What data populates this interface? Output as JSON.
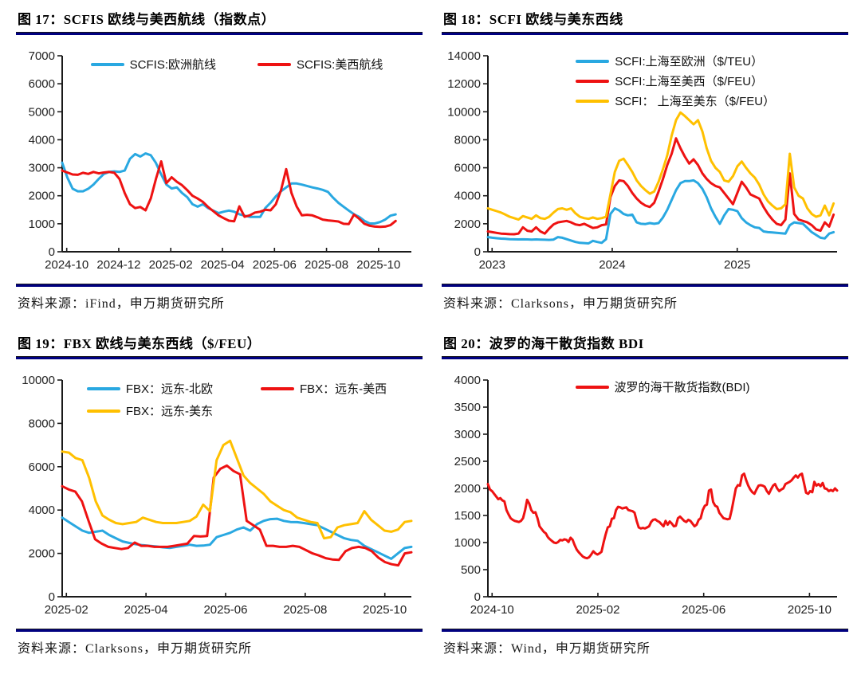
{
  "page": {
    "background": "#ffffff",
    "rule_color": "#000080"
  },
  "figures": [
    {
      "title": "图 17：SCFIS 欧线与美西航线（指数点）",
      "source": "资料来源：iFind，申万期货研究所"
    },
    {
      "title": "图 18：SCFI 欧线与美东西线",
      "source": "资料来源：Clarksons，申万期货研究所"
    },
    {
      "title": "图 19：FBX 欧线与美东西线（$/FEU）",
      "source": "资料来源：Clarksons，申万期货研究所"
    },
    {
      "title": "图 20：波罗的海干散货指数 BDI",
      "source": "资料来源：Wind，申万期货研究所"
    }
  ],
  "chart_data": [
    {
      "type": "line",
      "title": "图 17：SCFIS 欧线与美西航线（指数点）",
      "xlabel": "",
      "ylabel": "",
      "ylim": [
        0,
        7000
      ],
      "yticks": [
        0,
        1000,
        2000,
        3000,
        4000,
        5000,
        6000,
        7000
      ],
      "xticks": [
        {
          "label": "2024-10",
          "pos": 0.013
        },
        {
          "label": "2024-12",
          "pos": 0.162
        },
        {
          "label": "2025-02",
          "pos": 0.311
        },
        {
          "label": "2025-04",
          "pos": 0.459
        },
        {
          "label": "2025-06",
          "pos": 0.608
        },
        {
          "label": "2025-08",
          "pos": 0.757
        },
        {
          "label": "2025-10",
          "pos": 0.906
        }
      ],
      "x_end": 0.955,
      "grid": false,
      "legend_position": "top-center-row",
      "series": [
        {
          "name": "SCFIS:欧洲航线",
          "color": "#29A8E1",
          "values": [
            3180,
            2650,
            2250,
            2160,
            2160,
            2250,
            2400,
            2600,
            2780,
            2850,
            2870,
            2850,
            2900,
            3320,
            3490,
            3400,
            3510,
            3450,
            3170,
            2760,
            2400,
            2260,
            2300,
            2100,
            1950,
            1700,
            1610,
            1700,
            1560,
            1470,
            1380,
            1430,
            1470,
            1430,
            1340,
            1290,
            1245,
            1245,
            1245,
            1565,
            1750,
            1980,
            2160,
            2300,
            2440,
            2440,
            2400,
            2350,
            2300,
            2260,
            2210,
            2140,
            1930,
            1750,
            1610,
            1470,
            1340,
            1245,
            1105,
            1010,
            1010,
            1060,
            1150,
            1290,
            1335
          ]
        },
        {
          "name": "SCFIS:美西航线",
          "color": "#EE1212",
          "values": [
            2900,
            2830,
            2760,
            2750,
            2820,
            2780,
            2850,
            2800,
            2830,
            2850,
            2820,
            2600,
            2100,
            1700,
            1560,
            1600,
            1480,
            1900,
            2600,
            3230,
            2450,
            2660,
            2500,
            2380,
            2200,
            2000,
            1900,
            1780,
            1600,
            1450,
            1300,
            1200,
            1110,
            1090,
            1620,
            1250,
            1300,
            1400,
            1430,
            1500,
            1480,
            1700,
            2200,
            2950,
            2100,
            1620,
            1300,
            1320,
            1300,
            1230,
            1150,
            1120,
            1100,
            1080,
            1000,
            990,
            1330,
            1180,
            1000,
            930,
            900,
            890,
            900,
            950,
            1100
          ]
        }
      ]
    },
    {
      "type": "line",
      "title": "图 18：SCFI 欧线与美东西线",
      "xlabel": "",
      "ylabel": "",
      "ylim": [
        0,
        14000
      ],
      "yticks": [
        0,
        2000,
        4000,
        6000,
        8000,
        10000,
        12000,
        14000
      ],
      "xticks": [
        {
          "label": "2023",
          "pos": 0.012
        },
        {
          "label": "2024",
          "pos": 0.356
        },
        {
          "label": "2025",
          "pos": 0.714
        }
      ],
      "x_end": 0.99,
      "grid": false,
      "legend_position": "top-center-column",
      "series": [
        {
          "name": "SCFI:上海至欧洲（$/TEU）",
          "color": "#29A8E1",
          "values": [
            1050,
            1000,
            970,
            940,
            920,
            900,
            890,
            880,
            890,
            880,
            870,
            880,
            870,
            860,
            850,
            870,
            1050,
            1000,
            900,
            800,
            700,
            640,
            620,
            600,
            780,
            700,
            640,
            900,
            2700,
            3100,
            2950,
            2700,
            2600,
            2650,
            2100,
            2000,
            1980,
            2050,
            2000,
            2050,
            2450,
            3000,
            3700,
            4400,
            4900,
            5050,
            5050,
            5100,
            4900,
            4500,
            3900,
            3100,
            2500,
            2000,
            2600,
            3050,
            3000,
            2900,
            2400,
            2100,
            1900,
            1750,
            1700,
            1450,
            1400,
            1380,
            1350,
            1320,
            1300,
            1900,
            2100,
            2050,
            2000,
            1700,
            1400,
            1200,
            1000,
            950,
            1300,
            1400
          ]
        },
        {
          "name": "SCFI:上海至美西（$/FEU）",
          "color": "#EE1212",
          "values": [
            1450,
            1400,
            1350,
            1300,
            1280,
            1260,
            1250,
            1300,
            1750,
            1500,
            1450,
            1750,
            1450,
            1300,
            1650,
            1950,
            2100,
            2150,
            2200,
            2100,
            1950,
            1900,
            2000,
            1850,
            1700,
            1750,
            1900,
            1950,
            3900,
            4700,
            5100,
            5050,
            4700,
            4200,
            3800,
            3500,
            3300,
            3200,
            3500,
            4300,
            5200,
            6200,
            7000,
            8100,
            7400,
            6800,
            6300,
            6600,
            6200,
            5600,
            5200,
            4900,
            4700,
            4600,
            4200,
            3800,
            3400,
            4200,
            5000,
            4600,
            4100,
            3950,
            3800,
            3200,
            2700,
            2300,
            2000,
            1900,
            2300,
            5600,
            2700,
            2300,
            2200,
            2100,
            1900,
            1600,
            1500,
            2100,
            1800,
            2650
          ]
        },
        {
          "name": "SCFI： 上海至美东（$/FEU）",
          "color": "#FFC000",
          "values": [
            3100,
            3000,
            2900,
            2800,
            2650,
            2500,
            2400,
            2300,
            2550,
            2450,
            2350,
            2600,
            2400,
            2350,
            2500,
            2800,
            3050,
            3100,
            3000,
            3100,
            2750,
            2500,
            2400,
            2350,
            2450,
            2350,
            2400,
            2500,
            4100,
            5700,
            6500,
            6650,
            6200,
            5700,
            5100,
            4700,
            4400,
            4150,
            4300,
            5000,
            5900,
            6900,
            8300,
            9400,
            9950,
            9700,
            9400,
            9100,
            9400,
            8600,
            7400,
            6500,
            6000,
            5700,
            5100,
            5000,
            5400,
            6100,
            6450,
            6000,
            5600,
            5300,
            4800,
            4100,
            3600,
            3300,
            3050,
            3100,
            3400,
            7000,
            4600,
            4000,
            3800,
            3100,
            2700,
            2500,
            2600,
            3300,
            2600,
            3450
          ]
        }
      ]
    },
    {
      "type": "line",
      "title": "图 19：FBX 欧线与美东西线（$/FEU）",
      "xlabel": "",
      "ylabel": "",
      "ylim": [
        0,
        10000
      ],
      "yticks": [
        0,
        2000,
        4000,
        6000,
        8000,
        10000
      ],
      "xticks": [
        {
          "label": "2025-02",
          "pos": 0.012
        },
        {
          "label": "2025-04",
          "pos": 0.24
        },
        {
          "label": "2025-06",
          "pos": 0.468
        },
        {
          "label": "2025-08",
          "pos": 0.696
        },
        {
          "label": "2025-10",
          "pos": 0.924
        }
      ],
      "x_end": 1.0,
      "grid": false,
      "legend_position": "top-center-two-rows",
      "series": [
        {
          "name": "FBX：远东-北欧",
          "color": "#29A8E1",
          "values": [
            3650,
            3450,
            3250,
            3050,
            2950,
            3000,
            3050,
            2850,
            2700,
            2550,
            2480,
            2420,
            2380,
            2350,
            2320,
            2280,
            2250,
            2300,
            2350,
            2400,
            2350,
            2360,
            2400,
            2750,
            2850,
            2950,
            3100,
            3200,
            3050,
            3350,
            3500,
            3580,
            3600,
            3500,
            3450,
            3440,
            3400,
            3350,
            3300,
            3150,
            3000,
            2850,
            2700,
            2620,
            2580,
            2350,
            2200,
            2050,
            1900,
            1750,
            2000,
            2250,
            2300
          ]
        },
        {
          "name": "FBX：远东-美西",
          "color": "#EE1212",
          "values": [
            5100,
            4950,
            4850,
            4400,
            3500,
            2650,
            2450,
            2300,
            2250,
            2200,
            2250,
            2500,
            2350,
            2350,
            2300,
            2300,
            2300,
            2350,
            2400,
            2450,
            2800,
            2780,
            2800,
            5500,
            5900,
            6050,
            5800,
            5650,
            3500,
            3300,
            3100,
            2350,
            2350,
            2300,
            2300,
            2350,
            2300,
            2150,
            2000,
            1900,
            1780,
            1720,
            1700,
            2100,
            2250,
            2300,
            2250,
            2100,
            1800,
            1600,
            1500,
            1450,
            2000,
            2050
          ]
        },
        {
          "name": "FBX：远东-美东",
          "color": "#FFC000",
          "values": [
            6700,
            6650,
            6400,
            6300,
            5500,
            4400,
            3750,
            3550,
            3400,
            3350,
            3400,
            3450,
            3650,
            3550,
            3450,
            3400,
            3400,
            3400,
            3450,
            3500,
            3700,
            4250,
            3950,
            6300,
            7000,
            7200,
            6400,
            5600,
            5250,
            5000,
            4750,
            4400,
            4200,
            4000,
            3900,
            3650,
            3550,
            3450,
            3400,
            2700,
            2750,
            3200,
            3300,
            3350,
            3400,
            3950,
            3550,
            3300,
            3050,
            3000,
            3100,
            3450,
            3500
          ]
        }
      ]
    },
    {
      "type": "line",
      "title": "图 20：波罗的海干散货指数 BDI",
      "xlabel": "",
      "ylabel": "",
      "ylim": [
        0,
        4000
      ],
      "yticks": [
        0,
        500,
        1000,
        1500,
        2000,
        2500,
        3000,
        3500,
        4000
      ],
      "xticks": [
        {
          "label": "2024-10",
          "pos": 0.012
        },
        {
          "label": "2025-02",
          "pos": 0.315
        },
        {
          "label": "2025-06",
          "pos": 0.618
        },
        {
          "label": "2025-10",
          "pos": 0.921
        }
      ],
      "x_end": 1.0,
      "grid": false,
      "legend_position": "top-center",
      "series": [
        {
          "name": "波罗的海干散货指数(BDI)",
          "color": "#EE1212",
          "values": [
            2080,
            1980,
            1950,
            1900,
            1850,
            1800,
            1820,
            1780,
            1760,
            1600,
            1520,
            1450,
            1420,
            1400,
            1390,
            1380,
            1400,
            1450,
            1600,
            1790,
            1720,
            1600,
            1550,
            1560,
            1450,
            1300,
            1250,
            1200,
            1170,
            1100,
            1060,
            1030,
            1000,
            990,
            1010,
            1050,
            1040,
            1060,
            1050,
            1010,
            1090,
            1050,
            950,
            870,
            820,
            780,
            740,
            720,
            710,
            730,
            780,
            840,
            800,
            780,
            800,
            830,
            1000,
            1150,
            1280,
            1300,
            1440,
            1450,
            1600,
            1660,
            1650,
            1630,
            1640,
            1650,
            1600,
            1590,
            1580,
            1550,
            1400,
            1280,
            1260,
            1270,
            1260,
            1280,
            1300,
            1380,
            1420,
            1430,
            1400,
            1380,
            1340,
            1300,
            1400,
            1330,
            1390,
            1350,
            1300,
            1310,
            1450,
            1480,
            1440,
            1400,
            1380,
            1420,
            1400,
            1350,
            1300,
            1330,
            1420,
            1450,
            1600,
            1680,
            1700,
            1960,
            1980,
            1750,
            1680,
            1660,
            1550,
            1500,
            1450,
            1440,
            1430,
            1440,
            1600,
            1800,
            2000,
            2060,
            2050,
            2240,
            2270,
            2150,
            2050,
            1980,
            1930,
            1900,
            1980,
            2050,
            2060,
            2050,
            2030,
            1950,
            1900,
            1980,
            2050,
            2080,
            2000,
            1950,
            1980,
            2000,
            2080,
            2100,
            2120,
            2150,
            2200,
            2240,
            2200,
            2250,
            2270,
            2100,
            1920,
            1900,
            1950,
            1930,
            2120,
            2050,
            2080,
            2040,
            2100,
            2000,
            1990,
            1950,
            1970,
            1950,
            2000,
            1960
          ]
        }
      ]
    }
  ]
}
